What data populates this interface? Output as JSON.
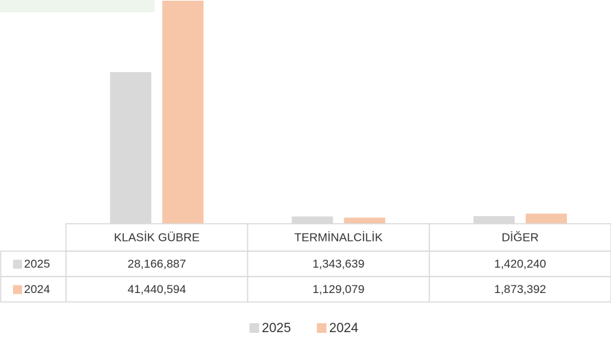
{
  "chart_data": {
    "type": "bar",
    "categories": [
      "KLASİK GÜBRE",
      "TERMİNALCİLİK",
      "DİĞER"
    ],
    "series": [
      {
        "name": "2025",
        "color": "#d9d9d9",
        "values": [
          28166887,
          1343639,
          1420240
        ],
        "value_labels": [
          "28,166,887",
          "1,343,639",
          "1,420,240"
        ]
      },
      {
        "name": "2024",
        "color": "#f7c6a8",
        "values": [
          41440594,
          1129079,
          1873392
        ],
        "value_labels": [
          "41,440,594",
          "1,129,079",
          "1,873,392"
        ]
      }
    ]
  }
}
